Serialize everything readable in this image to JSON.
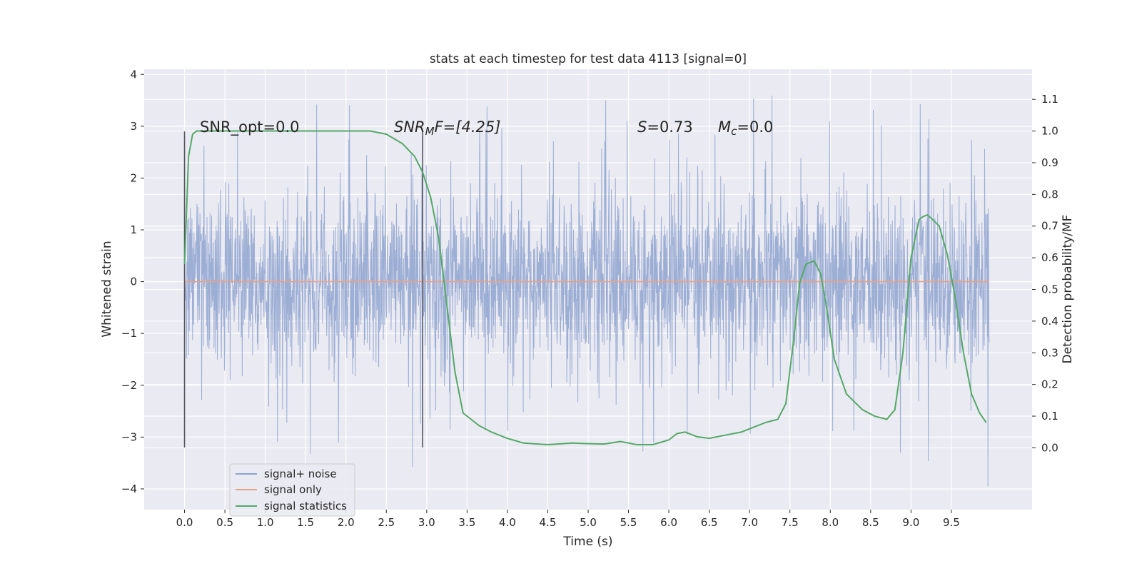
{
  "chart_data": {
    "type": "line",
    "title": "stats at each timestep for test data 4113 [signal=0]",
    "xlabel": "Time (s)",
    "ylabel": "Whitened strain",
    "y2label": "Detection probability/MF",
    "xlim": [
      -0.5,
      10.5
    ],
    "ylim": [
      -4.4,
      4.1
    ],
    "y2lim": [
      -0.195,
      1.195
    ],
    "xticks": [
      "0.0",
      "0.5",
      "1.0",
      "1.5",
      "2.0",
      "2.5",
      "3.0",
      "3.5",
      "4.0",
      "4.5",
      "5.0",
      "5.5",
      "6.0",
      "6.5",
      "7.0",
      "7.5",
      "8.0",
      "8.5",
      "9.0",
      "9.5"
    ],
    "yticks": [
      "4",
      "3",
      "2",
      "1",
      "0",
      "−1",
      "−2",
      "−3",
      "−4"
    ],
    "y2ticks": [
      "1.1",
      "1.0",
      "0.9",
      "0.8",
      "0.7",
      "0.6",
      "0.5",
      "0.4",
      "0.3",
      "0.2",
      "0.1",
      "0.0"
    ],
    "grid": true,
    "legend_position": "lower-left",
    "annotations": {
      "snr_opt": "SNR_opt=0.0",
      "snr_mf_prefix": "SNR",
      "snr_mf_sub": "M",
      "snr_mf_suffix": "F=[4.25]",
      "s_var": "S",
      "s_val": "=0.73",
      "mc_var": "M",
      "mc_sub": "c",
      "mc_val": "=0.0"
    },
    "vertical_lines": [
      {
        "x": 0.0,
        "y_range": [
          -3.2,
          2.9
        ]
      },
      {
        "x": 2.95,
        "y_range": [
          -3.2,
          2.9
        ]
      }
    ],
    "series": [
      {
        "name": "signal+ noise",
        "color": "#8fa3cf",
        "kind": "noise",
        "x_range": [
          0.0,
          9.97
        ],
        "core_std": 0.85,
        "max_value": 3.7,
        "min_value": -3.95
      },
      {
        "name": "signal only",
        "color": "#e8a287",
        "kind": "constant",
        "x": [
          0.0,
          9.97
        ],
        "y": [
          0.0,
          0.0
        ]
      },
      {
        "name": "signal statistics",
        "color": "#55a868",
        "axis": "right",
        "x": [
          0.0,
          0.05,
          0.1,
          0.15,
          0.2,
          0.3,
          0.5,
          1.0,
          1.5,
          2.0,
          2.3,
          2.5,
          2.7,
          2.85,
          2.95,
          3.05,
          3.15,
          3.25,
          3.35,
          3.45,
          3.55,
          3.65,
          3.8,
          4.0,
          4.2,
          4.5,
          4.8,
          5.0,
          5.2,
          5.4,
          5.6,
          5.8,
          6.0,
          6.1,
          6.2,
          6.35,
          6.5,
          6.7,
          6.9,
          7.0,
          7.2,
          7.35,
          7.45,
          7.55,
          7.62,
          7.7,
          7.8,
          7.88,
          7.95,
          8.05,
          8.2,
          8.4,
          8.55,
          8.7,
          8.8,
          8.9,
          9.0,
          9.1,
          9.15,
          9.2,
          9.25,
          9.35,
          9.45,
          9.55,
          9.65,
          9.75,
          9.85,
          9.93
        ],
        "y": [
          0.58,
          0.92,
          0.99,
          1.0,
          1.0,
          1.0,
          1.0,
          1.0,
          1.0,
          1.0,
          1.0,
          0.99,
          0.96,
          0.92,
          0.87,
          0.79,
          0.66,
          0.45,
          0.24,
          0.11,
          0.09,
          0.07,
          0.05,
          0.03,
          0.015,
          0.01,
          0.015,
          0.013,
          0.012,
          0.02,
          0.01,
          0.01,
          0.025,
          0.045,
          0.05,
          0.035,
          0.03,
          0.04,
          0.05,
          0.06,
          0.08,
          0.09,
          0.14,
          0.35,
          0.52,
          0.58,
          0.59,
          0.55,
          0.45,
          0.28,
          0.17,
          0.12,
          0.1,
          0.09,
          0.12,
          0.3,
          0.6,
          0.72,
          0.73,
          0.735,
          0.725,
          0.7,
          0.61,
          0.47,
          0.3,
          0.17,
          0.11,
          0.08
        ]
      }
    ]
  }
}
